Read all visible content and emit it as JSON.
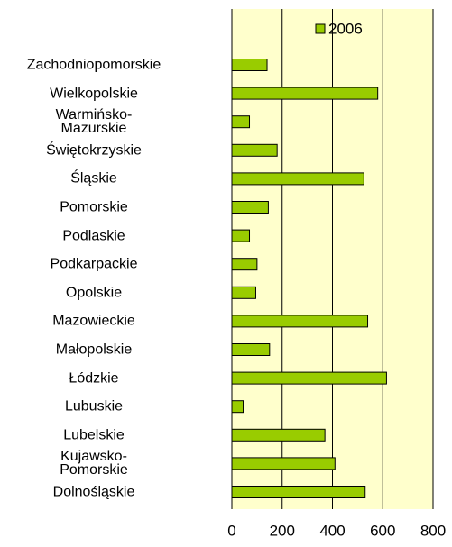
{
  "chart_data": {
    "type": "barh",
    "categories": [
      "Zachodniopomorskie",
      "Wielkopolskie",
      "Warmińsko-\nMazurskie",
      "Świętokrzyskie",
      "Śląskie",
      "Pomorskie",
      "Podlaskie",
      "Podkarpackie",
      "Opolskie",
      "Mazowieckie",
      "Małopolskie",
      "Łódzkie",
      "Lubuskie",
      "Lubelskie",
      "Kujawsko-\nPomorskie",
      "Dolnośląskie"
    ],
    "series": [
      {
        "name": "2006",
        "color": "#99cc00",
        "values": [
          140,
          580,
          70,
          180,
          525,
          145,
          70,
          100,
          95,
          540,
          150,
          615,
          45,
          370,
          410,
          530
        ]
      }
    ],
    "xlim": [
      0,
      800
    ],
    "xticks": [
      0,
      200,
      400,
      600,
      800
    ],
    "grid": true,
    "legend": "top"
  }
}
